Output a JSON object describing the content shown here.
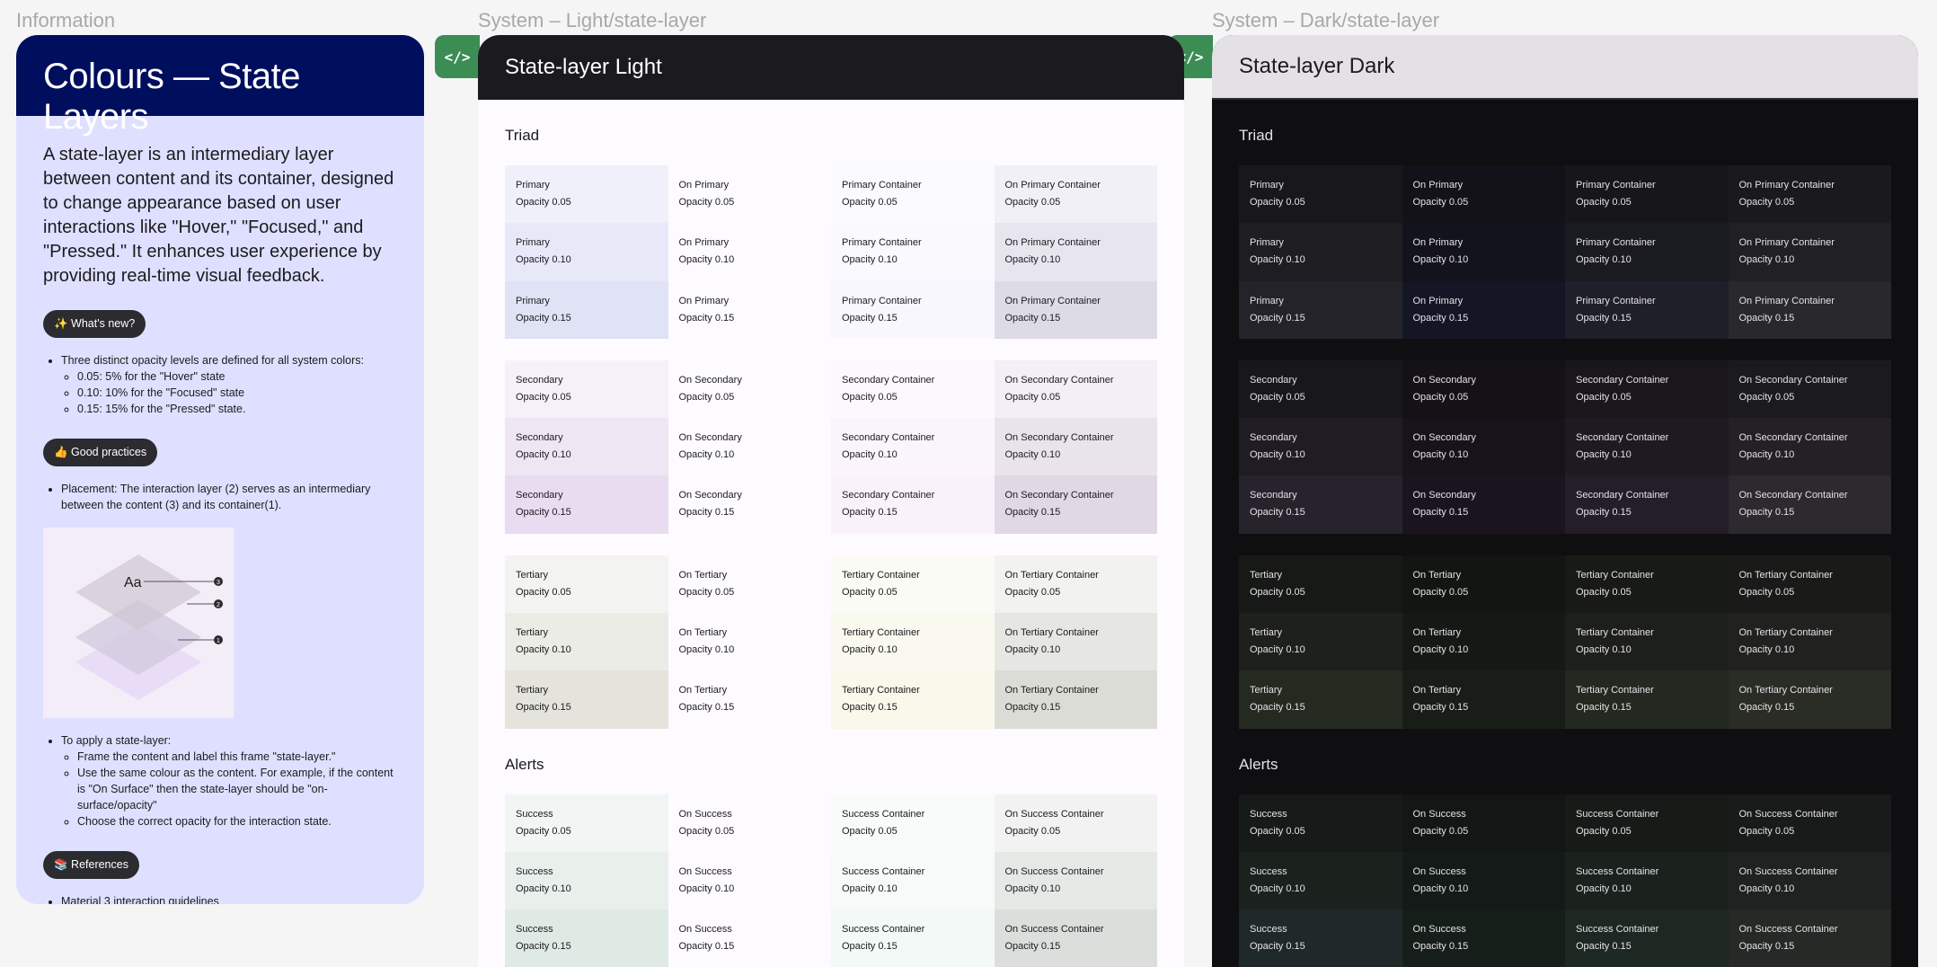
{
  "labels": {
    "info": "Information",
    "light": "System – Light/state-layer",
    "dark": "System – Dark/state-layer"
  },
  "info": {
    "title": "Colours — State Layers",
    "intro": "A state-layer is an intermediary layer between content and its container, designed to change appearance based on user interactions like \"Hover,\" \"Focused,\" and \"Pressed.\" It enhances user experience by providing real-time visual feedback.",
    "whats_new": "✨ What's new?",
    "whats_new_items": [
      "Three distinct opacity levels are defined for all system colors:",
      "0.05: 5% for the \"Hover\" state",
      "0.10: 10% for the \"Focused\" state",
      "0.15: 15% for the \"Pressed\" state."
    ],
    "good_practices": "👍 Good practices",
    "placement": "Placement: The interaction layer (2) serves as an intermediary between the content (3) and its container(1).",
    "diagram_text": "Aa",
    "diagram_markers": [
      "3",
      "2",
      "1"
    ],
    "apply_title": "To apply a state-layer:",
    "apply_items": [
      "Frame the content and label this frame \"state-layer.\"",
      "Use the same colour as the content. For example, if the content is \"On Surface\" then the state-layer should be \"on-surface/opacity\"",
      "Choose the correct opacity for the interaction state."
    ],
    "references": "📚 References",
    "reference_link": "Material 3 interaction guidelines"
  },
  "code_icon": "</>",
  "light": {
    "title": "State-layer Light",
    "triad_title": "Triad",
    "alerts_title": "Alerts"
  },
  "dark": {
    "title": "State-layer Dark",
    "triad_title": "Triad",
    "alerts_title": "Alerts"
  },
  "opacities": [
    "Opacity 0.05",
    "Opacity 0.10",
    "Opacity 0.15"
  ],
  "groups": [
    {
      "section": "triad",
      "names": [
        "Primary",
        "On Primary",
        "Primary Container",
        "On Primary Container"
      ],
      "light_colors": [
        [
          "#eff0fa",
          "#fdfbff",
          "#fbfbfe",
          "#f1f0f7"
        ],
        [
          "#e8e9f8",
          "#fdfbff",
          "#f9f9fe",
          "#e7e6ef"
        ],
        [
          "#e0e2f5",
          "#fdfbff",
          "#f7f7fd",
          "#dcdbe6"
        ]
      ],
      "dark_colors": [
        [
          "#18181b",
          "#121218",
          "#16161b",
          "#1a1a1d"
        ],
        [
          "#1d1d22",
          "#13131c",
          "#1a1a21",
          "#212124"
        ],
        [
          "#232329",
          "#141625",
          "#1e1f28",
          "#29292d"
        ]
      ]
    },
    {
      "section": "triad",
      "names": [
        "Secondary",
        "On Secondary",
        "Secondary Container",
        "On Secondary Container"
      ],
      "light_colors": [
        [
          "#f5f1f8",
          "#fdfbff",
          "#fcf9fd",
          "#f3eff6"
        ],
        [
          "#efe6f3",
          "#fdfbff",
          "#faf5fc",
          "#e9e3ec"
        ],
        [
          "#e9dcf0",
          "#fdfbff",
          "#f9f2fb",
          "#e0d8e4"
        ]
      ],
      "dark_colors": [
        [
          "#18171b",
          "#141217",
          "#19171c",
          "#1b1a1d"
        ],
        [
          "#1f1d23",
          "#17131b",
          "#1e1a22",
          "#232125"
        ],
        [
          "#27232c",
          "#1a141f",
          "#241e29",
          "#2c2a2f"
        ]
      ]
    },
    {
      "section": "triad",
      "names": [
        "Tertiary",
        "On Tertiary",
        "Tertiary Container",
        "On Tertiary Container"
      ],
      "light_colors": [
        [
          "#f3f3f1",
          "#fdfbff",
          "#fbfbf6",
          "#f2f2f0"
        ],
        [
          "#ecece6",
          "#fdfbff",
          "#f9f9f0",
          "#e6e6e2"
        ],
        [
          "#e4e4dc",
          "#fdfbff",
          "#f8f8eb",
          "#dcdcd7"
        ]
      ],
      "dark_colors": [
        [
          "#171916",
          "#131512",
          "#181a16",
          "#1a1b19"
        ],
        [
          "#1d201b",
          "#151915",
          "#1d201a",
          "#21221f"
        ],
        [
          "#252a21",
          "#181d17",
          "#232820",
          "#2a2c26"
        ]
      ]
    },
    {
      "section": "alerts",
      "names": [
        "Success",
        "On Success",
        "Success Container",
        "On Success Container"
      ],
      "light_colors": [
        [
          "#f1f5f3",
          "#fdfbff",
          "#f9fbfa",
          "#f1f2f1"
        ],
        [
          "#e9f0ec",
          "#fdfbff",
          "#f6faf8",
          "#e6e8e6"
        ],
        [
          "#e0eae5",
          "#fdfbff",
          "#f3f9f6",
          "#dcdedc"
        ]
      ],
      "dark_colors": [
        [
          "#161a18",
          "#121614",
          "#171b18",
          "#191b1a"
        ],
        [
          "#1b221e",
          "#141a17",
          "#1b221e",
          "#1f2220"
        ],
        [
          "#20292a",
          "#161e1a",
          "#1e2823",
          "#262926"
        ]
      ]
    }
  ]
}
